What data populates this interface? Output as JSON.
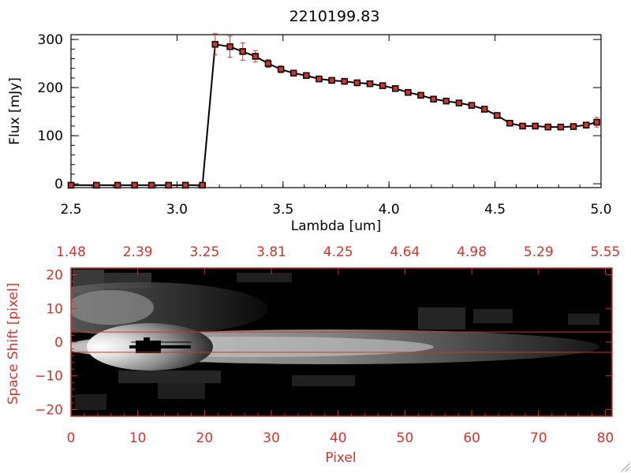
{
  "chart_data": [
    {
      "type": "line",
      "title": "2210199.83",
      "xlabel": "Lambda [um]",
      "ylabel": "Flux [mJy]",
      "xlim": [
        2.5,
        5.0
      ],
      "ylim": [
        -8,
        310
      ],
      "xticks": [
        2.5,
        3.0,
        3.5,
        4.0,
        4.5,
        5.0
      ],
      "xtick_labels": [
        "2.5",
        "3.0",
        "3.5",
        "4.0",
        "4.5",
        "5.0"
      ],
      "yticks": [
        0,
        100,
        200,
        300
      ],
      "ytick_labels": [
        "0",
        "100",
        "200",
        "300"
      ],
      "grid": false,
      "series": [
        {
          "name": "flux",
          "color": "#d0342c",
          "x": [
            2.5,
            2.62,
            2.72,
            2.8,
            2.88,
            2.96,
            3.04,
            3.12,
            3.18,
            3.25,
            3.31,
            3.37,
            3.43,
            3.49,
            3.55,
            3.61,
            3.67,
            3.73,
            3.79,
            3.85,
            3.91,
            3.97,
            4.03,
            4.09,
            4.15,
            4.21,
            4.27,
            4.33,
            4.39,
            4.45,
            4.51,
            4.57,
            4.63,
            4.69,
            4.75,
            4.81,
            4.87,
            4.93,
            4.98
          ],
          "y": [
            -3,
            -3,
            -3,
            -3,
            -3,
            -3,
            -3,
            -3,
            290,
            285,
            275,
            265,
            250,
            238,
            230,
            225,
            218,
            215,
            213,
            210,
            208,
            204,
            198,
            190,
            184,
            176,
            172,
            168,
            163,
            155,
            142,
            126,
            120,
            120,
            118,
            118,
            119,
            122,
            128
          ],
          "yerr": [
            0,
            0,
            0,
            0,
            0,
            0,
            0,
            0,
            22,
            22,
            18,
            12,
            8,
            7,
            6,
            6,
            5,
            5,
            5,
            5,
            5,
            5,
            5,
            5,
            5,
            5,
            5,
            5,
            5,
            5,
            5,
            5,
            5,
            5,
            5,
            5,
            5,
            6,
            10
          ]
        }
      ]
    },
    {
      "type": "heatmap",
      "xlabel": "Pixel",
      "ylabel": "Space Shift [pixel]",
      "xlim": [
        0,
        81
      ],
      "ylim": [
        -22,
        22
      ],
      "xticks": [
        0,
        10,
        20,
        30,
        40,
        50,
        60,
        70,
        80
      ],
      "xtick_labels": [
        "0",
        "10",
        "20",
        "30",
        "40",
        "50",
        "60",
        "70",
        "80"
      ],
      "yticks": [
        -20,
        -10,
        0,
        10,
        20
      ],
      "ytick_labels": [
        "−20",
        "−10",
        "0",
        "10",
        "20"
      ],
      "top_axis_ticks": [
        0,
        10,
        20,
        30,
        40,
        50,
        60,
        70,
        80
      ],
      "top_axis_labels": [
        "1.48",
        "2.39",
        "3.25",
        "3.81",
        "4.25",
        "4.64",
        "4.98",
        "5.29",
        "5.55"
      ],
      "extraction_window": [
        -3,
        3
      ],
      "trace_center": 0,
      "color": "#d0342c"
    }
  ]
}
